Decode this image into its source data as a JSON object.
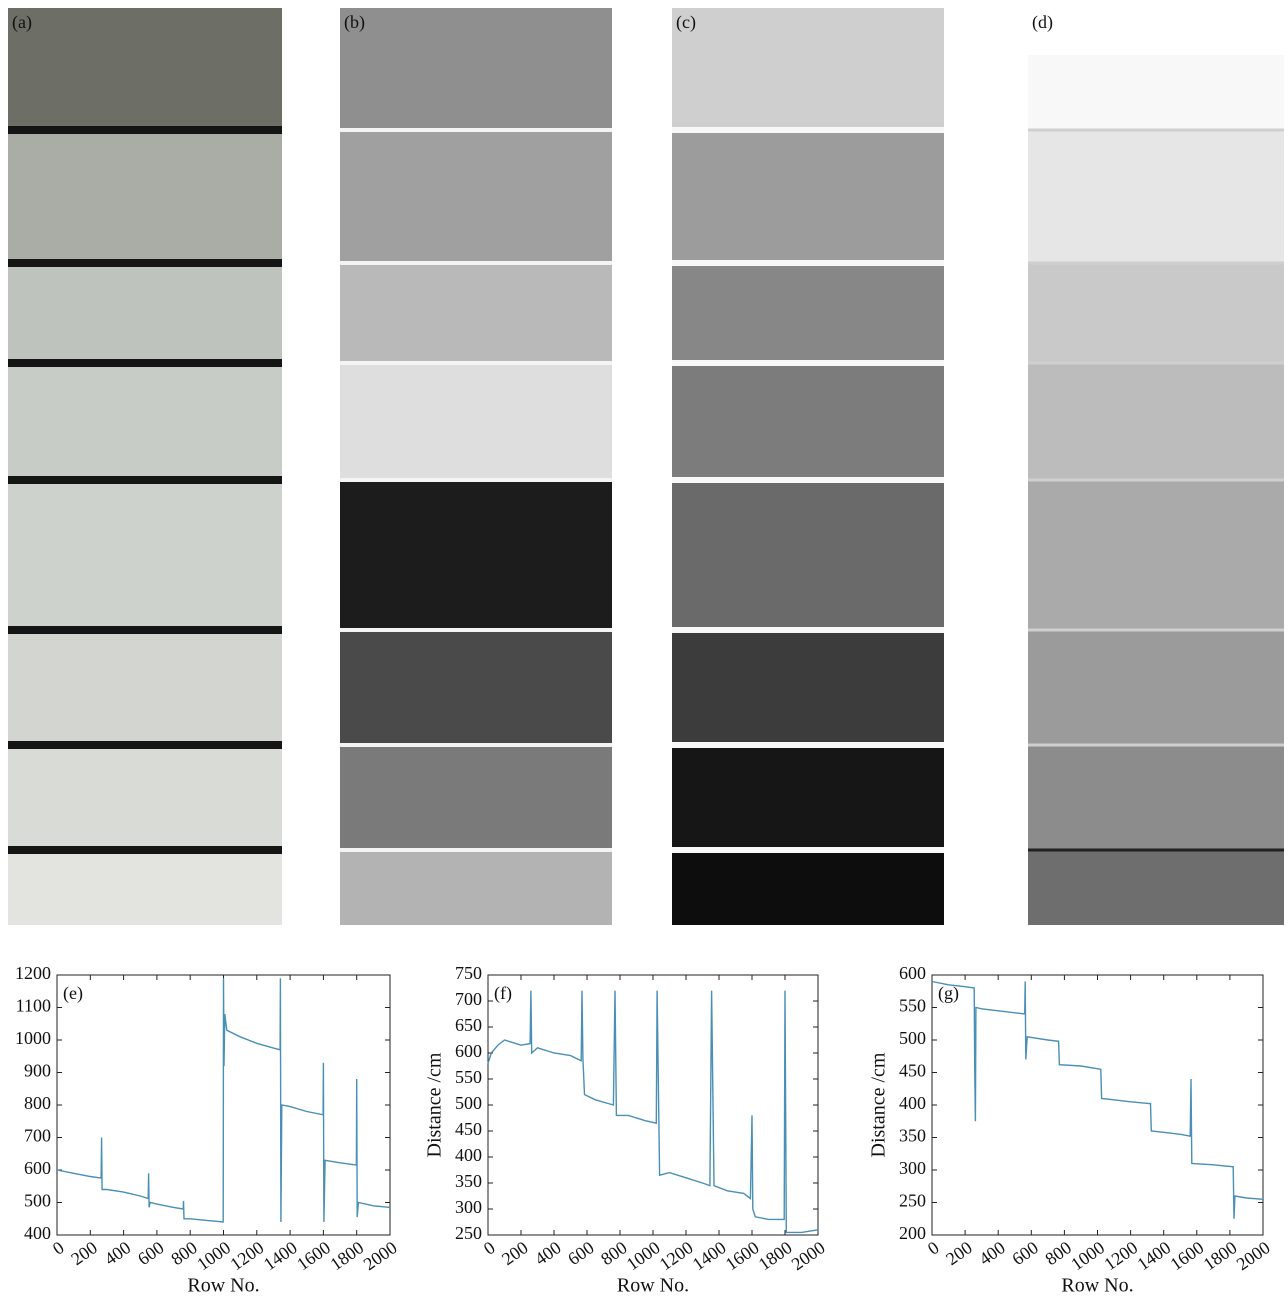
{
  "panels": [
    {
      "label": "(a)"
    },
    {
      "label": "(b)"
    },
    {
      "label": "(c)"
    },
    {
      "label": "(d)"
    }
  ],
  "chart_data": [
    {
      "type": "line",
      "panel_label": "(e)",
      "x_label": "Row No.",
      "color": "#4a8fb5",
      "x": [
        0,
        100,
        200,
        265,
        268,
        271,
        300,
        400,
        500,
        548,
        550,
        553,
        560,
        600,
        700,
        758,
        760,
        763,
        800,
        900,
        998,
        1000,
        1003,
        1008,
        1020,
        1100,
        1200,
        1300,
        1340,
        1342,
        1345,
        1350,
        1400,
        1500,
        1598,
        1600,
        1603,
        1610,
        1700,
        1798,
        1800,
        1803,
        1810,
        1900,
        2000
      ],
      "values": [
        600,
        590,
        580,
        575,
        700,
        540,
        540,
        532,
        520,
        512,
        590,
        485,
        500,
        495,
        485,
        480,
        505,
        450,
        450,
        445,
        440,
        1190,
        920,
        1080,
        1030,
        1010,
        990,
        975,
        970,
        1190,
        440,
        800,
        795,
        780,
        770,
        930,
        440,
        630,
        622,
        615,
        880,
        455,
        500,
        490,
        485
      ],
      "xlim": [
        0,
        2000
      ],
      "xticks": [
        0,
        200,
        400,
        600,
        800,
        1000,
        1200,
        1400,
        1600,
        1800,
        2000
      ],
      "ylim": [
        400,
        1200
      ],
      "yticks": [
        400,
        500,
        600,
        700,
        800,
        900,
        1000,
        1100,
        1200
      ]
    },
    {
      "type": "line",
      "panel_label": "(f)",
      "x_label": "Row No.",
      "y_label": "Distance /cm",
      "color": "#4a8fb5",
      "x": [
        0,
        20,
        60,
        100,
        150,
        200,
        255,
        260,
        265,
        300,
        400,
        500,
        565,
        570,
        575,
        585,
        650,
        760,
        770,
        778,
        850,
        950,
        1020,
        1025,
        1040,
        1100,
        1200,
        1300,
        1345,
        1355,
        1370,
        1450,
        1550,
        1590,
        1600,
        1605,
        1620,
        1700,
        1795,
        1800,
        1808,
        1900,
        2000
      ],
      "values": [
        580,
        600,
        615,
        625,
        620,
        615,
        618,
        720,
        600,
        610,
        600,
        595,
        585,
        720,
        590,
        520,
        510,
        500,
        720,
        480,
        480,
        470,
        465,
        720,
        365,
        370,
        360,
        350,
        345,
        720,
        345,
        335,
        330,
        320,
        480,
        300,
        285,
        280,
        280,
        720,
        255,
        255,
        260
      ],
      "xlim": [
        0,
        2000
      ],
      "xticks": [
        0,
        200,
        400,
        600,
        800,
        1000,
        1200,
        1400,
        1600,
        1800,
        2000
      ],
      "ylim": [
        250,
        750
      ],
      "yticks": [
        250,
        300,
        350,
        400,
        450,
        500,
        550,
        600,
        650,
        700,
        750
      ]
    },
    {
      "type": "line",
      "panel_label": "(g)",
      "x_label": "Row No.",
      "y_label": "Distance /cm",
      "color": "#4a8fb5",
      "x": [
        0,
        100,
        200,
        255,
        258,
        262,
        265,
        300,
        400,
        560,
        563,
        567,
        575,
        700,
        765,
        770,
        900,
        1020,
        1025,
        1100,
        1200,
        1320,
        1325,
        1400,
        1500,
        1560,
        1565,
        1570,
        1700,
        1820,
        1825,
        1830,
        1900,
        2000
      ],
      "values": [
        590,
        585,
        582,
        580,
        460,
        375,
        550,
        548,
        545,
        540,
        590,
        470,
        505,
        500,
        498,
        462,
        460,
        455,
        410,
        408,
        405,
        402,
        360,
        358,
        355,
        352,
        440,
        310,
        308,
        305,
        225,
        260,
        257,
        255
      ],
      "xlim": [
        0,
        2000
      ],
      "xticks": [
        0,
        200,
        400,
        600,
        800,
        1000,
        1200,
        1400,
        1600,
        1800,
        2000
      ],
      "ylim": [
        200,
        600
      ],
      "yticks": [
        200,
        250,
        300,
        350,
        400,
        450,
        500,
        550,
        600
      ]
    }
  ]
}
